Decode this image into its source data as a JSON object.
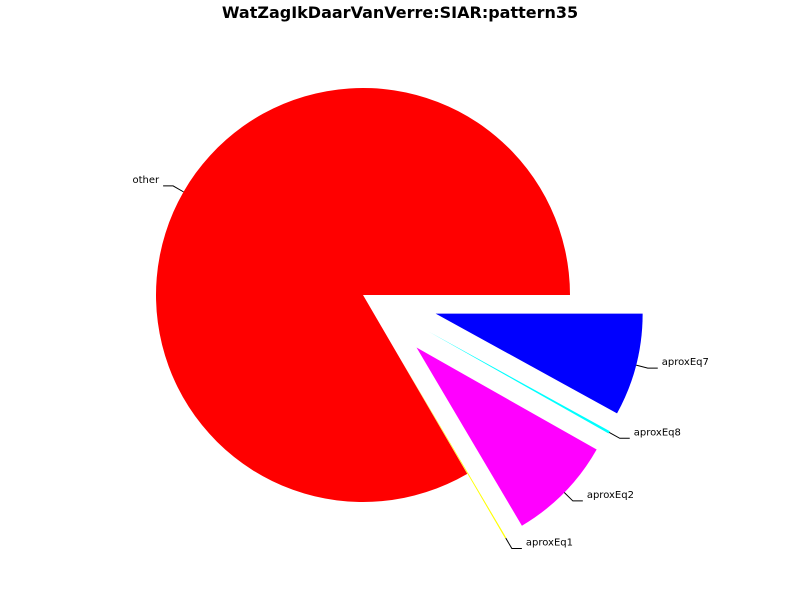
{
  "chart_data": {
    "type": "pie",
    "title": "WatZagIkDaarVanVerre:SIAR:pattern35",
    "slices": [
      {
        "label": "aproxEq7",
        "value": 8.0,
        "color": "#0000ff",
        "exploded": true
      },
      {
        "label": "aproxEq8",
        "value": 0.2,
        "color": "#00ffff",
        "exploded": true
      },
      {
        "label": "aproxEq2",
        "value": 8.3,
        "color": "#ff00ff",
        "exploded": true
      },
      {
        "label": "aproxEq1",
        "value": 0.1,
        "color": "#ffff00",
        "exploded": true
      },
      {
        "label": "other",
        "value": 83.4,
        "color": "#ff0000",
        "exploded": false
      }
    ],
    "legend": "none",
    "grid": false
  }
}
